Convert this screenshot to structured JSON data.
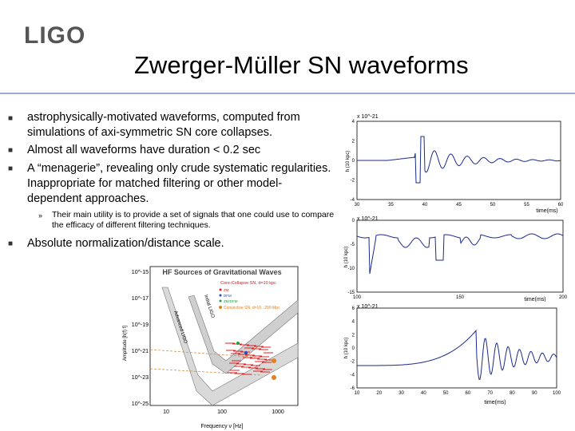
{
  "header": {
    "logo": "LIGO",
    "title": "Zwerger-Müller SN waveforms"
  },
  "bullets": [
    {
      "text": "astrophysically-motivated waveforms, computed from simulations of axi-symmetric SN core collapses."
    },
    {
      "text": "Almost all waveforms have duration < 0.2 sec"
    },
    {
      "text": "A “menagerie”, revealing only crude systematic regularities. Inappropriate for matched filtering or other model-dependent approaches."
    }
  ],
  "sub_bullet": {
    "mark": "»",
    "text": "Their main utility is to provide a set of signals that one could use to compare the efficacy of different filtering techniques."
  },
  "bullet4": {
    "text": "Absolute normalization/distance scale."
  },
  "colors": {
    "rule": "#9aaccf",
    "waveform": "#1a2a8a",
    "band": "#c8c8c8",
    "core_collapse": "#e02020"
  },
  "chart_data": [
    {
      "type": "line",
      "title": "",
      "xlabel": "time(ms)",
      "ylabel": "h (10 kpc)",
      "exponent": "x 10^-21",
      "xticks": [
        "30",
        "35",
        "40",
        "45",
        "50",
        "55",
        "60"
      ],
      "yticks": [
        "4",
        "2",
        "0",
        "-2",
        "-4"
      ],
      "xlim": [
        30,
        60
      ],
      "ylim": [
        -4,
        4
      ]
    },
    {
      "type": "line",
      "title": "",
      "xlabel": "time(ms)",
      "ylabel": "h (10 kpc)",
      "exponent": "x 10^-21",
      "xticks": [
        "100",
        "150",
        "200"
      ],
      "yticks": [
        "0",
        "-5",
        "-10",
        "-15"
      ],
      "xlim": [
        50,
        200
      ],
      "ylim": [
        -15,
        3
      ]
    },
    {
      "type": "line",
      "title": "",
      "xlabel": "time(ms)",
      "ylabel": "h (10 kpc)",
      "exponent": "x 10^-21",
      "xticks": [
        "10",
        "20",
        "30",
        "40",
        "50",
        "60",
        "70",
        "80",
        "90",
        "100"
      ],
      "yticks": [
        "6",
        "4",
        "2",
        "0",
        "-2",
        "-4",
        "-6"
      ],
      "xlim": [
        10,
        100
      ],
      "ylim": [
        -6,
        6
      ]
    },
    {
      "type": "line",
      "title": "HF Sources of Gravitational Waves",
      "xlabel": "Frequency ν [Hz]",
      "ylabel": "Amplitude [h(f) f]",
      "yticks": [
        "10^-15",
        "10^-17",
        "10^-19",
        "10^-21",
        "10^-23",
        "10^-25"
      ],
      "xticks": [
        "10",
        "100",
        "1000"
      ],
      "legend": [
        "Core-Collapse SN, d=10 kpc",
        "ZM",
        "DFM",
        "ZM/DFM",
        "Convective SN, d=10...200 Mpc"
      ],
      "curves": [
        "Initial LIGO",
        "Advanced LIGO"
      ]
    }
  ]
}
